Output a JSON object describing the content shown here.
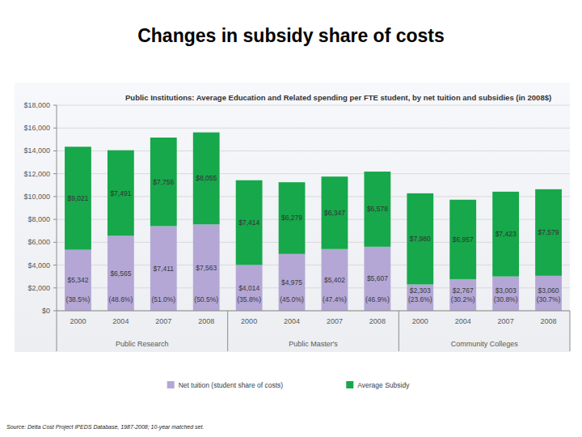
{
  "chart_data": {
    "type": "bar",
    "title": "Changes in subsidy share of costs",
    "subtitle": "Public Institutions: Average Education and Related spending per FTE student, by net tuition and subsidies (in 2008$)",
    "annotations": [
      "Source: Delta Cost Project IPEDS Database, 1987-2008; 10-year matched set."
    ],
    "categories": [
      "2000",
      "2004",
      "2007",
      "2008",
      "2000",
      "2004",
      "2007",
      "2008",
      "2000",
      "2004",
      "2007",
      "2008"
    ],
    "groups": [
      "Public Research",
      "Public Research",
      "Public Research",
      "Public Research",
      "Public Master's",
      "Public Master's",
      "Public Master's",
      "Public Master's",
      "Community Colleges",
      "Community Colleges",
      "Community Colleges",
      "Community Colleges"
    ],
    "series": [
      {
        "name": "Net tuition (student share of costs)",
        "color": "#b4a7d6",
        "values": [
          5342,
          6565,
          7411,
          7563,
          4014,
          4975,
          5402,
          5607,
          2303,
          2767,
          3003,
          3060
        ],
        "value_labels": [
          "$5,342",
          "$6,565",
          "$7,411",
          "$7,563",
          "$4,014",
          "$4,975",
          "$5,402",
          "$5,607",
          "$2,303",
          "$2,767",
          "$3,003",
          "$3,060"
        ],
        "shares": [
          38.5,
          48.6,
          51.0,
          50.5,
          35.8,
          45.0,
          47.4,
          46.9,
          23.6,
          30.2,
          30.8,
          30.7
        ],
        "share_labels": [
          "(38.5%)",
          "(48.6%)",
          "(51.0%)",
          "(50.5%)",
          "(35.8%)",
          "(45.0%)",
          "(47.4%)",
          "(46.9%)",
          "(23.6%)",
          "(30.2%)",
          "(30.8%)",
          "(30.7%)"
        ]
      },
      {
        "name": "Average Subsidy",
        "color": "#16a84a",
        "values": [
          9021,
          7491,
          7756,
          8055,
          7414,
          6279,
          6347,
          6578,
          7980,
          6957,
          7423,
          7579
        ],
        "value_labels": [
          "$9,021",
          "$7,491",
          "$7,756",
          "$8,055",
          "$7,414",
          "$6,279",
          "$6,347",
          "$6,578",
          "$7,980",
          "$6,957",
          "$7,423",
          "$7,579"
        ]
      }
    ],
    "ylim": [
      0,
      18000
    ],
    "yticks": [
      {
        "value": 0,
        "label": "$0"
      },
      {
        "value": 2000,
        "label": "$2,000"
      },
      {
        "value": 4000,
        "label": "$4,000"
      },
      {
        "value": 6000,
        "label": "$6,000"
      },
      {
        "value": 8000,
        "label": "$8,000"
      },
      {
        "value": 10000,
        "label": "$10,000"
      },
      {
        "value": 12000,
        "label": "$12,000"
      },
      {
        "value": 14000,
        "label": "$14,000"
      },
      {
        "value": 16000,
        "label": "$16,000"
      },
      {
        "value": 18000,
        "label": "$18,000"
      }
    ],
    "grid": true,
    "stacked": true,
    "data_labels": true,
    "legend": "bottom"
  }
}
